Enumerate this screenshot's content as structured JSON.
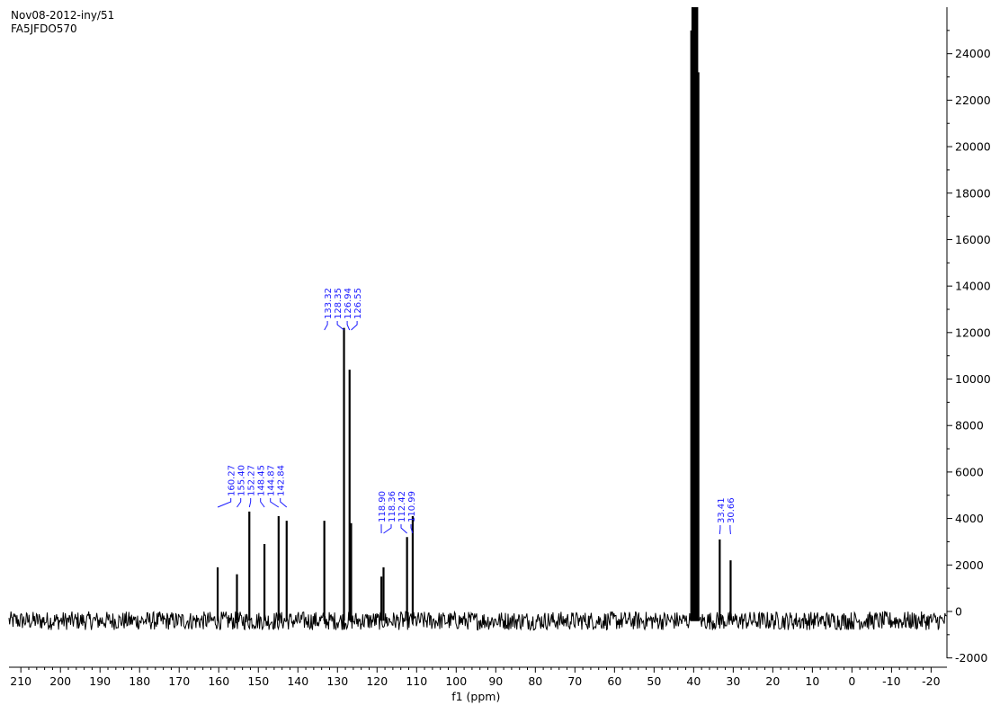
{
  "header": {
    "line1": "Nov08-2012-iny/51",
    "line2": "FA5JFDO570"
  },
  "chart_data": {
    "type": "line",
    "title": "",
    "xlabel": "f1 (ppm)",
    "ylabel": "",
    "xlim": [
      213,
      -24
    ],
    "ylim": [
      -2400,
      26000
    ],
    "x_reversed": true,
    "y_axis_side": "right",
    "grid": false,
    "x_ticks": [
      210,
      200,
      190,
      180,
      170,
      160,
      150,
      140,
      130,
      120,
      110,
      100,
      90,
      80,
      70,
      60,
      50,
      40,
      30,
      20,
      10,
      0,
      -10,
      -20
    ],
    "x_tick_labels": [
      "210",
      "200",
      "190",
      "180",
      "170",
      "160",
      "150",
      "140",
      "130",
      "120",
      "110",
      "100",
      "90",
      "80",
      "70",
      "60",
      "50",
      "40",
      "30",
      "20",
      "10",
      "0",
      "-10",
      "-20"
    ],
    "y_ticks": [
      -2000,
      0,
      2000,
      4000,
      6000,
      8000,
      10000,
      12000,
      14000,
      16000,
      18000,
      20000,
      22000,
      24000
    ],
    "y_tick_labels": [
      "-2000",
      "0",
      "2000",
      "4000",
      "6000",
      "8000",
      "10000",
      "12000",
      "14000",
      "16000",
      "18000",
      "20000",
      "22000",
      "24000"
    ],
    "baseline": -400,
    "noise_amplitude": 400,
    "peaks": [
      {
        "x": 160.27,
        "y": 1900
      },
      {
        "x": 155.4,
        "y": 1600
      },
      {
        "x": 152.27,
        "y": 4300
      },
      {
        "x": 148.45,
        "y": 2900
      },
      {
        "x": 144.87,
        "y": 4100
      },
      {
        "x": 142.84,
        "y": 3900
      },
      {
        "x": 133.32,
        "y": 3900
      },
      {
        "x": 128.35,
        "y": 12200
      },
      {
        "x": 126.94,
        "y": 10400
      },
      {
        "x": 126.55,
        "y": 3800
      },
      {
        "x": 118.9,
        "y": 1500
      },
      {
        "x": 118.36,
        "y": 1900
      },
      {
        "x": 112.42,
        "y": 3200
      },
      {
        "x": 110.99,
        "y": 4100
      },
      {
        "x": 40.6,
        "y": 25000
      },
      {
        "x": 40.3,
        "y": 26000
      },
      {
        "x": 40.0,
        "y": 26000
      },
      {
        "x": 39.7,
        "y": 26000
      },
      {
        "x": 39.4,
        "y": 26000
      },
      {
        "x": 39.1,
        "y": 26000
      },
      {
        "x": 38.8,
        "y": 23200
      },
      {
        "x": 33.41,
        "y": 3100
      },
      {
        "x": 30.66,
        "y": 2200
      }
    ],
    "peak_label_groups": [
      {
        "labels": [
          "160.27",
          "155.40",
          "152.27",
          "148.45",
          "144.87",
          "142.84"
        ],
        "values": [
          160.27,
          155.4,
          152.27,
          148.45,
          144.87,
          142.84
        ]
      },
      {
        "labels": [
          "133.32",
          "128.35",
          "126.94",
          "126.55"
        ],
        "values": [
          133.32,
          128.35,
          126.94,
          126.55
        ]
      },
      {
        "labels": [
          "118.90",
          "118.36",
          "112.42",
          "110.99"
        ],
        "values": [
          118.9,
          118.36,
          112.42,
          110.99
        ]
      },
      {
        "labels": [
          "33.41",
          "30.66"
        ],
        "values": [
          33.41,
          30.66
        ]
      }
    ],
    "colors": {
      "spectrum": "#000000",
      "peak_labels": "#1a1aff",
      "axes": "#000000"
    }
  }
}
